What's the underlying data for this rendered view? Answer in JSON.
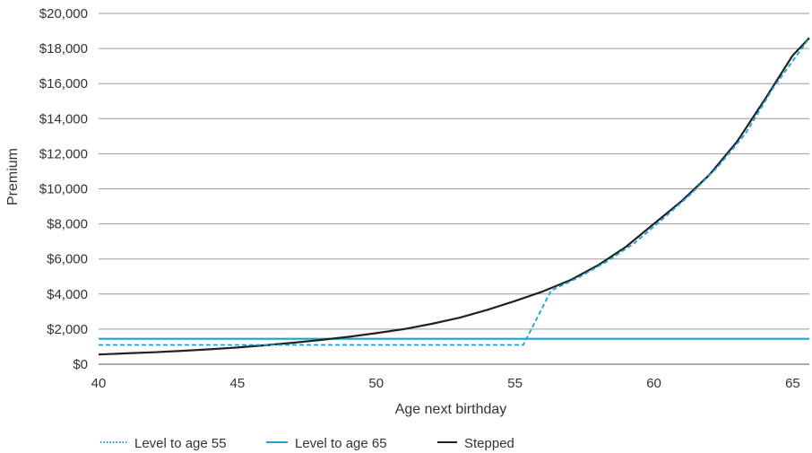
{
  "chart_data": {
    "type": "line",
    "xlabel": "Age next birthday",
    "ylabel": "Premium",
    "xlim": [
      40,
      65.6
    ],
    "ylim": [
      0,
      20000
    ],
    "x_ticks": [
      40,
      45,
      50,
      55,
      60,
      65
    ],
    "y_ticks": [
      0,
      2000,
      4000,
      6000,
      8000,
      10000,
      12000,
      14000,
      16000,
      18000,
      20000
    ],
    "y_tick_labels": [
      "$0",
      "$2,000",
      "$4,000",
      "$6,000",
      "$8,000",
      "$10,000",
      "$12,000",
      "$14,000",
      "$16,000",
      "$18,000",
      "$20,000"
    ],
    "x_tick_labels": [
      "40",
      "45",
      "50",
      "55",
      "60",
      "65"
    ],
    "grid": "horizontal",
    "legend_position": "bottom-left",
    "series": [
      {
        "name": "Level to age 55",
        "color": "#1aa3d4",
        "style": "dashed",
        "legend_style": "dotted",
        "points": [
          [
            40,
            1100
          ],
          [
            55.3,
            1100
          ],
          [
            56.3,
            4200
          ],
          [
            57.3,
            4950
          ],
          [
            58.3,
            5850
          ],
          [
            59.3,
            6900
          ],
          [
            60.3,
            8250
          ],
          [
            61.3,
            9650
          ],
          [
            62.3,
            11250
          ],
          [
            63.3,
            13150
          ],
          [
            64.3,
            15750
          ],
          [
            65.6,
            18600
          ]
        ]
      },
      {
        "name": "Level to age 65",
        "color": "#1aa3d4",
        "style": "solid",
        "legend_style": "solid",
        "points": [
          [
            40,
            1450
          ],
          [
            65.6,
            1450
          ]
        ]
      },
      {
        "name": "Stepped",
        "color": "#222222",
        "style": "solid",
        "legend_style": "solid",
        "points": [
          [
            40,
            550
          ],
          [
            41,
            620
          ],
          [
            42,
            680
          ],
          [
            43,
            760
          ],
          [
            44,
            850
          ],
          [
            45,
            950
          ],
          [
            46,
            1080
          ],
          [
            47,
            1220
          ],
          [
            48,
            1380
          ],
          [
            49,
            1560
          ],
          [
            50,
            1770
          ],
          [
            51,
            2000
          ],
          [
            52,
            2300
          ],
          [
            53,
            2650
          ],
          [
            54,
            3100
          ],
          [
            55,
            3600
          ],
          [
            56,
            4150
          ],
          [
            57,
            4800
          ],
          [
            58,
            5650
          ],
          [
            59,
            6700
          ],
          [
            60,
            8000
          ],
          [
            61,
            9300
          ],
          [
            62,
            10800
          ],
          [
            63,
            12700
          ],
          [
            64,
            15100
          ],
          [
            65,
            17600
          ],
          [
            65.6,
            18600
          ]
        ]
      }
    ]
  }
}
